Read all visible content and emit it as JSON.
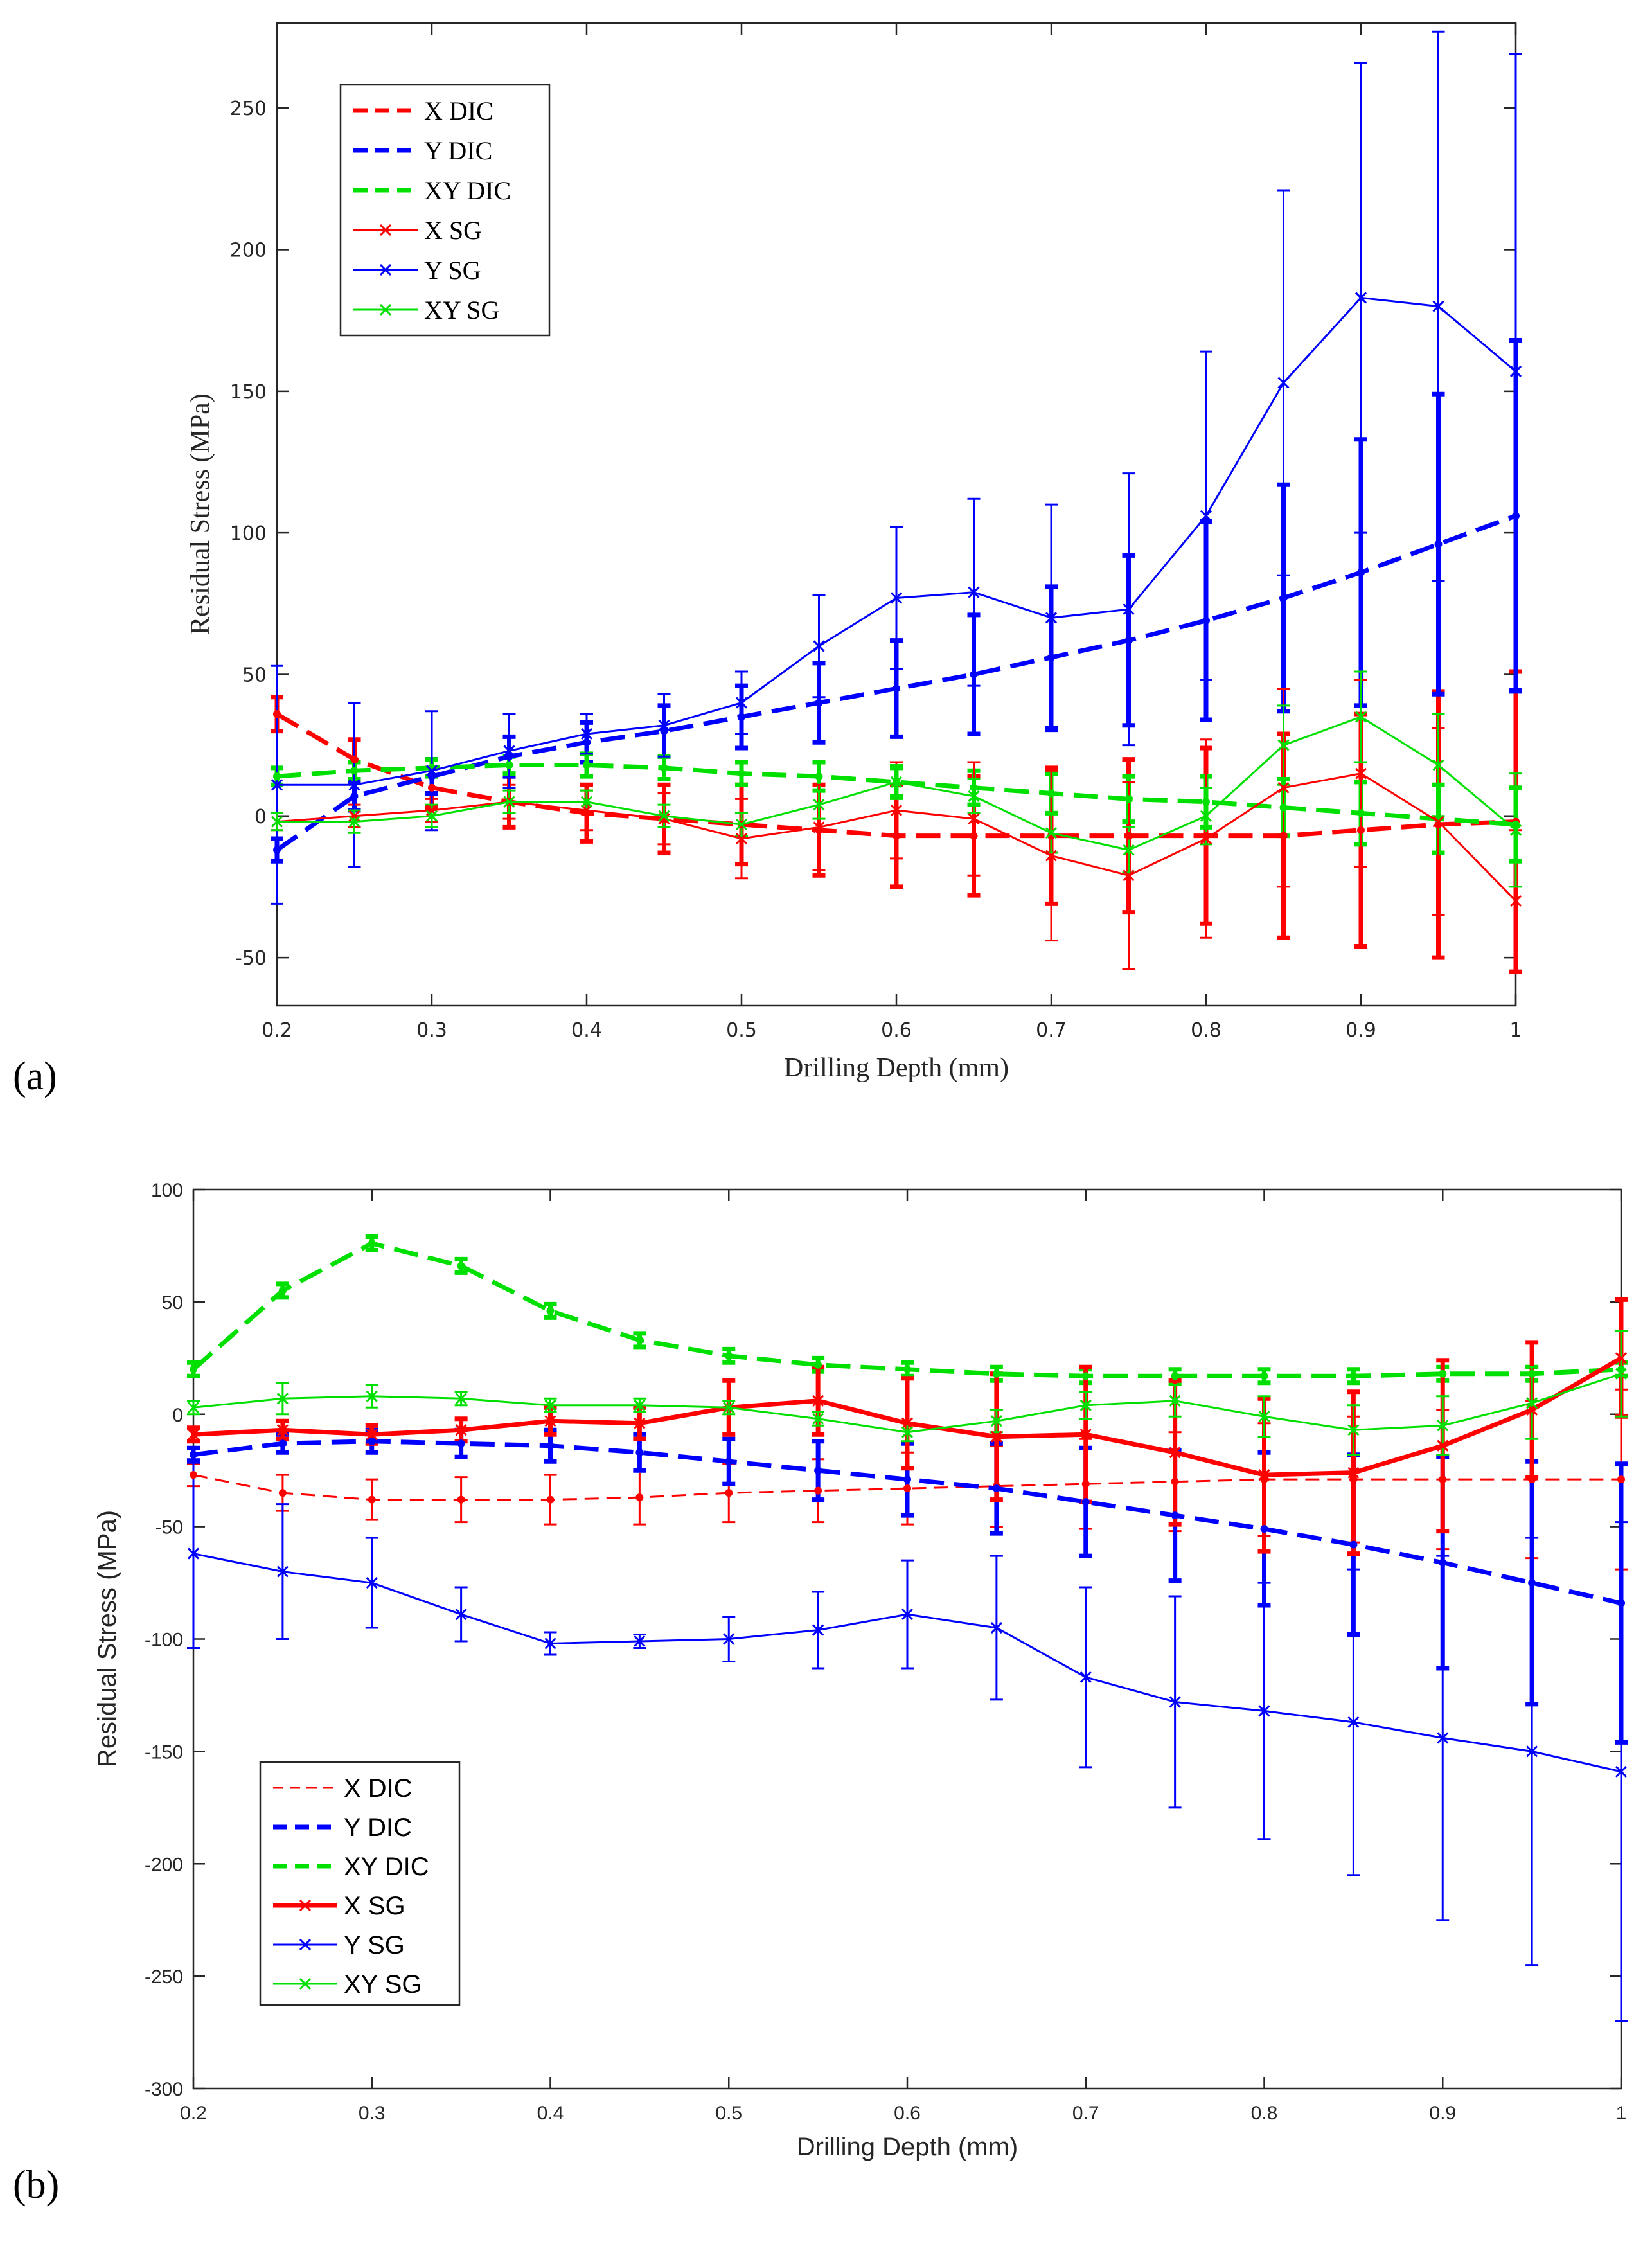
{
  "chart_data": [
    {
      "type": "line",
      "panel_label": "(a)",
      "title": "",
      "xlabel": "Drilling Depth (mm)",
      "ylabel": "Residual Stress (MPa)",
      "xlim": [
        0.2,
        1.0
      ],
      "ylim": [
        -67,
        280
      ],
      "xticks": [
        0.2,
        0.3,
        0.4,
        0.5,
        0.6,
        0.7,
        0.8,
        0.9,
        1.0
      ],
      "xtick_labels": [
        "0.2",
        "0.3",
        "0.4",
        "0.5",
        "0.6",
        "0.7",
        "0.8",
        "0.9",
        "1"
      ],
      "yticks": [
        -50,
        0,
        50,
        100,
        150,
        200,
        250
      ],
      "ytick_labels": [
        "-50",
        "0",
        "50",
        "100",
        "150",
        "200",
        "250"
      ],
      "grid": false,
      "legend_position": "top-left",
      "x": [
        0.2,
        0.25,
        0.3,
        0.35,
        0.4,
        0.45,
        0.5,
        0.55,
        0.6,
        0.65,
        0.7,
        0.75,
        0.8,
        0.85,
        0.9,
        0.95,
        1.0
      ],
      "series": [
        {
          "name": "X DIC",
          "color": "#ff0000",
          "style": "dash",
          "width": "thick",
          "marker": "dot",
          "values": [
            36,
            20,
            10,
            5,
            1,
            -1,
            -3,
            -5,
            -7,
            -7,
            -7,
            -7,
            -7,
            -7,
            -5,
            -3,
            -2
          ],
          "errors": [
            6,
            7,
            7,
            9,
            10,
            12,
            14,
            16,
            18,
            21,
            24,
            27,
            31,
            36,
            41,
            47,
            53
          ]
        },
        {
          "name": "Y DIC",
          "color": "#0000ff",
          "style": "dash",
          "width": "thick",
          "marker": "dot",
          "values": [
            -12,
            7,
            14,
            21,
            26,
            30,
            35,
            40,
            45,
            50,
            56,
            62,
            69,
            77,
            86,
            96,
            106
          ],
          "errors": [
            4,
            5,
            6,
            7,
            7,
            9,
            11,
            14,
            17,
            21,
            25,
            30,
            35,
            40,
            47,
            53,
            62
          ]
        },
        {
          "name": "XY DIC",
          "color": "#00e000",
          "style": "dash",
          "width": "thick",
          "marker": "dot",
          "values": [
            14,
            16,
            17,
            18,
            18,
            17,
            15,
            14,
            12,
            10,
            8,
            6,
            5,
            3,
            1,
            -1,
            -3
          ],
          "errors": [
            3,
            3,
            3,
            3,
            4,
            4,
            4,
            5,
            5,
            6,
            7,
            8,
            9,
            10,
            11,
            12,
            13
          ]
        },
        {
          "name": "X SG",
          "color": "#ff0000",
          "style": "solid",
          "width": "thin",
          "marker": "x",
          "values": [
            -2,
            0,
            2,
            5,
            2,
            -1,
            -8,
            -4,
            2,
            -1,
            -14,
            -21,
            -8,
            10,
            15,
            -2,
            -30
          ],
          "errors": [
            3,
            4,
            4,
            6,
            7,
            9,
            14,
            15,
            17,
            20,
            30,
            33,
            35,
            35,
            33,
            33,
            25
          ]
        },
        {
          "name": "Y SG",
          "color": "#0000ff",
          "style": "solid",
          "width": "thin",
          "marker": "x",
          "values": [
            11,
            11,
            16,
            23,
            29,
            32,
            40,
            60,
            77,
            79,
            70,
            73,
            106,
            153,
            183,
            180,
            157
          ],
          "errors": [
            42,
            29,
            21,
            13,
            7,
            11,
            11,
            18,
            25,
            33,
            40,
            48,
            58,
            68,
            83,
            97,
            112
          ]
        },
        {
          "name": "XY SG",
          "color": "#00e000",
          "style": "solid",
          "width": "thin",
          "marker": "x",
          "values": [
            -2,
            -2,
            0,
            5,
            5,
            0,
            -3,
            4,
            12,
            7,
            -6,
            -12,
            0,
            25,
            35,
            18,
            -5
          ],
          "errors": [
            3,
            4,
            4,
            4,
            4,
            4,
            4,
            5,
            6,
            6,
            7,
            8,
            10,
            14,
            16,
            18,
            20
          ]
        }
      ]
    },
    {
      "type": "line",
      "panel_label": "(b)",
      "title": "",
      "xlabel": "Drilling Depth (mm)",
      "ylabel": "Residual Stress (MPa)",
      "xlim": [
        0.2,
        1.0
      ],
      "ylim": [
        -300,
        100
      ],
      "xticks": [
        0.2,
        0.3,
        0.4,
        0.5,
        0.6,
        0.7,
        0.8,
        0.9,
        1.0
      ],
      "xtick_labels": [
        "0.2",
        "0.3",
        "0.4",
        "0.5",
        "0.6",
        "0.7",
        "0.8",
        "0.9",
        "1"
      ],
      "yticks": [
        -300,
        -250,
        -200,
        -150,
        -100,
        -50,
        0,
        50,
        100
      ],
      "ytick_labels": [
        "-300",
        "-250",
        "-200",
        "-150",
        "-100",
        "-50",
        "0",
        "50",
        "100"
      ],
      "grid": false,
      "legend_position": "bottom-left",
      "x": [
        0.2,
        0.25,
        0.3,
        0.35,
        0.4,
        0.45,
        0.5,
        0.55,
        0.6,
        0.65,
        0.7,
        0.75,
        0.8,
        0.85,
        0.9,
        0.95,
        1.0
      ],
      "series": [
        {
          "name": "X DIC",
          "color": "#ff0000",
          "style": "dash",
          "width": "thin",
          "marker": "dot",
          "values": [
            -27,
            -35,
            -38,
            -38,
            -38,
            -37,
            -35,
            -34,
            -33,
            -32,
            -31,
            -30,
            -29,
            -29,
            -29,
            -29,
            -29
          ],
          "errors": [
            5,
            8,
            9,
            10,
            11,
            12,
            13,
            14,
            16,
            18,
            20,
            22,
            25,
            28,
            31,
            35,
            40
          ]
        },
        {
          "name": "Y DIC",
          "color": "#0000ff",
          "style": "dash",
          "width": "thick",
          "marker": "dot",
          "values": [
            -18,
            -13,
            -12,
            -13,
            -14,
            -17,
            -21,
            -25,
            -29,
            -33,
            -39,
            -45,
            -51,
            -58,
            -66,
            -75,
            -84
          ],
          "errors": [
            3,
            4,
            5,
            6,
            7,
            8,
            10,
            13,
            16,
            20,
            24,
            29,
            34,
            40,
            47,
            54,
            62
          ]
        },
        {
          "name": "XY DIC",
          "color": "#00e000",
          "style": "dash",
          "width": "thick",
          "marker": "dot",
          "values": [
            20,
            55,
            76,
            66,
            46,
            33,
            26,
            22,
            20,
            18,
            17,
            17,
            17,
            17,
            18,
            18,
            20
          ],
          "errors": [
            3,
            3,
            3,
            3,
            3,
            3,
            3,
            3,
            3,
            3,
            3,
            3,
            3,
            3,
            3,
            3,
            3
          ]
        },
        {
          "name": "X SG",
          "color": "#ff0000",
          "style": "solid",
          "width": "thick",
          "marker": "x",
          "values": [
            -9,
            -7,
            -9,
            -7,
            -3,
            -4,
            3,
            6,
            -4,
            -10,
            -9,
            -17,
            -27,
            -26,
            -14,
            2,
            25
          ],
          "errors": [
            3,
            4,
            4,
            5,
            6,
            7,
            12,
            15,
            20,
            28,
            30,
            32,
            34,
            36,
            38,
            30,
            26
          ]
        },
        {
          "name": "Y SG",
          "color": "#0000ff",
          "style": "solid",
          "width": "thin",
          "marker": "x",
          "values": [
            -62,
            -70,
            -75,
            -89,
            -102,
            -101,
            -100,
            -96,
            -89,
            -95,
            -117,
            -128,
            -132,
            -137,
            -144,
            -150,
            -159
          ],
          "errors": [
            42,
            30,
            20,
            12,
            5,
            3,
            10,
            17,
            24,
            32,
            40,
            47,
            57,
            68,
            81,
            95,
            111
          ]
        },
        {
          "name": "XY SG",
          "color": "#00e000",
          "style": "solid",
          "width": "thin",
          "marker": "x",
          "values": [
            3,
            7,
            8,
            7,
            4,
            4,
            3,
            -2,
            -8,
            -3,
            4,
            6,
            -1,
            -7,
            -5,
            5,
            18
          ],
          "errors": [
            3,
            7,
            5,
            3,
            3,
            3,
            3,
            3,
            4,
            5,
            6,
            7,
            9,
            11,
            13,
            16,
            19
          ]
        }
      ]
    }
  ]
}
